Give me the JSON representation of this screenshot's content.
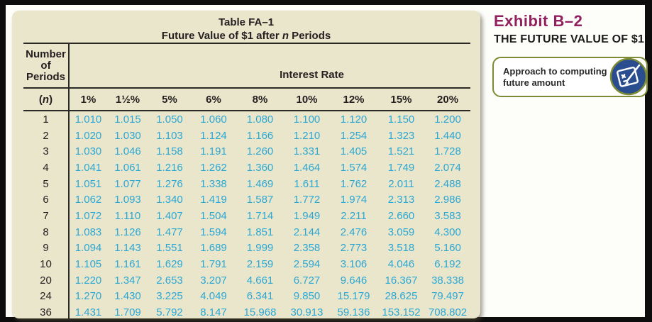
{
  "colors": {
    "frame": "#0d0d0d",
    "page_bg": "#fdfdfa",
    "panel_bg": "#eae6cb",
    "rule": "#2b2926",
    "value_text": "#2ba7d4",
    "exhibit_title": "#93205e",
    "box_border": "#7d8b34",
    "icon_circle": "#2a4d8f"
  },
  "table": {
    "title": "Table FA–1",
    "subtitle": {
      "pre": "Future Value of $1 after ",
      "sym": "n",
      "post": " Periods"
    },
    "period_header_lines": [
      "Number",
      "of",
      "Periods"
    ],
    "period_symbol": {
      "pre": "(",
      "sym": "n",
      "post": ")"
    },
    "group_header": "Interest Rate",
    "columns": [
      "1%",
      "1½%",
      "5%",
      "6%",
      "8%",
      "10%",
      "12%",
      "15%",
      "20%"
    ],
    "rows": [
      {
        "n": "1",
        "values": [
          "1.010",
          "1.015",
          "1.050",
          "1.060",
          "1.080",
          "1.100",
          "1.120",
          "1.150",
          "1.200"
        ]
      },
      {
        "n": "2",
        "values": [
          "1.020",
          "1.030",
          "1.103",
          "1.124",
          "1.166",
          "1.210",
          "1.254",
          "1.323",
          "1.440"
        ]
      },
      {
        "n": "3",
        "values": [
          "1.030",
          "1.046",
          "1.158",
          "1.191",
          "1.260",
          "1.331",
          "1.405",
          "1.521",
          "1.728"
        ]
      },
      {
        "n": "4",
        "values": [
          "1.041",
          "1.061",
          "1.216",
          "1.262",
          "1.360",
          "1.464",
          "1.574",
          "1.749",
          "2.074"
        ]
      },
      {
        "n": "5",
        "values": [
          "1.051",
          "1.077",
          "1.276",
          "1.338",
          "1.469",
          "1.611",
          "1.762",
          "2.011",
          "2.488"
        ]
      },
      {
        "n": "6",
        "values": [
          "1.062",
          "1.093",
          "1.340",
          "1.419",
          "1.587",
          "1.772",
          "1.974",
          "2.313",
          "2.986"
        ]
      },
      {
        "n": "7",
        "values": [
          "1.072",
          "1.110",
          "1.407",
          "1.504",
          "1.714",
          "1.949",
          "2.211",
          "2.660",
          "3.583"
        ]
      },
      {
        "n": "8",
        "values": [
          "1.083",
          "1.126",
          "1.477",
          "1.594",
          "1.851",
          "2.144",
          "2.476",
          "3.059",
          "4.300"
        ]
      },
      {
        "n": "9",
        "values": [
          "1.094",
          "1.143",
          "1.551",
          "1.689",
          "1.999",
          "2.358",
          "2.773",
          "3.518",
          "5.160"
        ]
      },
      {
        "n": "10",
        "values": [
          "1.105",
          "1.161",
          "1.629",
          "1.791",
          "2.159",
          "2.594",
          "3.106",
          "4.046",
          "6.192"
        ]
      },
      {
        "n": "20",
        "values": [
          "1.220",
          "1.347",
          "2.653",
          "3.207",
          "4.661",
          "6.727",
          "9.646",
          "16.367",
          "38.338"
        ]
      },
      {
        "n": "24",
        "values": [
          "1.270",
          "1.430",
          "3.225",
          "4.049",
          "6.341",
          "9.850",
          "15.179",
          "28.625",
          "79.497"
        ]
      },
      {
        "n": "36",
        "values": [
          "1.431",
          "1.709",
          "5.792",
          "8.147",
          "15.968",
          "30.913",
          "59.136",
          "153.152",
          "708.802"
        ]
      }
    ]
  },
  "exhibit": {
    "label": "Exhibit B–2",
    "title": "THE FUTURE VALUE OF $1",
    "callout_lines": [
      "Approach to computing",
      "future amount"
    ],
    "icon": "notepad-pencil-icon"
  }
}
